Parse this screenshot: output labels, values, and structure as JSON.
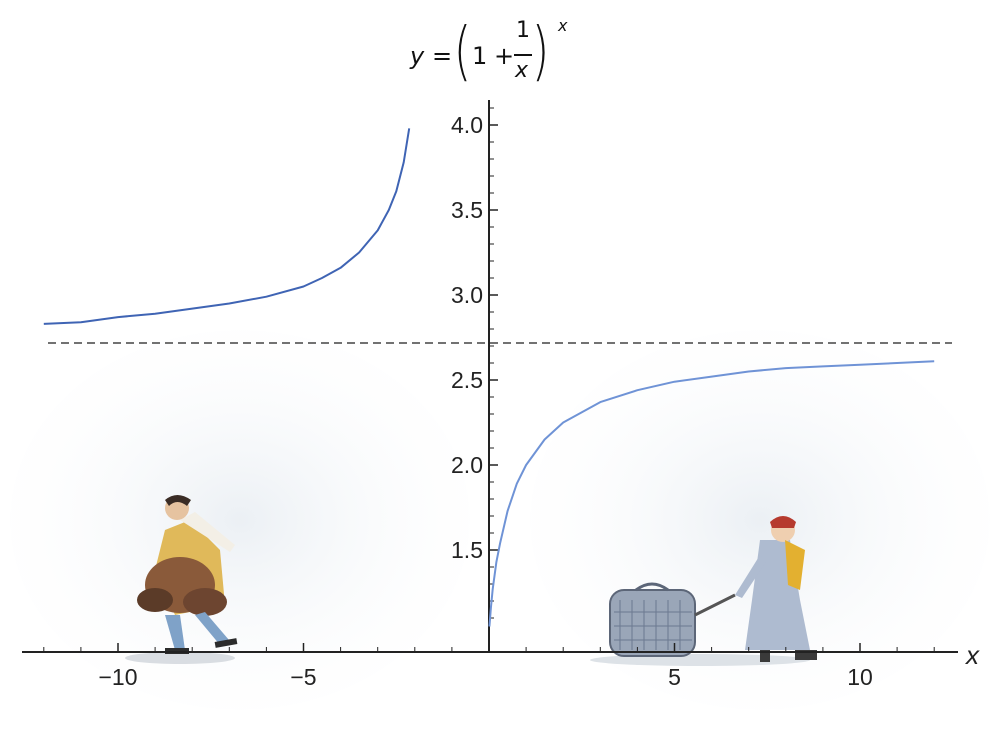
{
  "chart_data": {
    "type": "line",
    "title_parts": {
      "y": "y",
      "eq": "=",
      "lparen": "(",
      "one": "1",
      "plus": "+",
      "numerator": "1",
      "denominator": "x",
      "rparen": ")",
      "exponent": "x"
    },
    "xlabel": "x",
    "ylabel": "",
    "xlim": [
      -12.2,
      12.2
    ],
    "ylim": [
      1.0,
      4.1
    ],
    "x_ticks": [
      {
        "value": -10,
        "label": "−10"
      },
      {
        "value": -5,
        "label": "−5"
      },
      {
        "value": 5,
        "label": "5"
      },
      {
        "value": 10,
        "label": "10"
      }
    ],
    "y_ticks": [
      {
        "value": 1.5,
        "label": "1.5"
      },
      {
        "value": 2.0,
        "label": "2.0"
      },
      {
        "value": 2.5,
        "label": "2.5"
      },
      {
        "value": 3.0,
        "label": "3.0"
      },
      {
        "value": 3.5,
        "label": "3.5"
      },
      {
        "value": 4.0,
        "label": "4.0"
      }
    ],
    "series": [
      {
        "segment": "left",
        "color": "#3f64b4",
        "x": [
          -12,
          -11,
          -10,
          -9,
          -8,
          -7,
          -6,
          -5,
          -4.5,
          -4,
          -3.5,
          -3,
          -2.7,
          -2.5,
          -2.3,
          -2.15
        ],
        "y": [
          2.83,
          2.84,
          2.87,
          2.89,
          2.92,
          2.95,
          2.99,
          3.05,
          3.1,
          3.16,
          3.25,
          3.38,
          3.5,
          3.61,
          3.78,
          3.98
        ]
      },
      {
        "segment": "right",
        "color": "#6f93d6",
        "x": [
          0.01,
          0.05,
          0.1,
          0.2,
          0.3,
          0.5,
          0.75,
          1,
          1.5,
          2,
          3,
          4,
          5,
          6,
          7,
          8,
          9,
          10,
          11,
          12
        ],
        "y": [
          1.05,
          1.16,
          1.27,
          1.43,
          1.54,
          1.73,
          1.89,
          2.0,
          2.15,
          2.25,
          2.37,
          2.44,
          2.49,
          2.52,
          2.55,
          2.57,
          2.58,
          2.59,
          2.6,
          2.61
        ]
      }
    ],
    "asymptote": {
      "value": 2.718,
      "style": "dashed",
      "color": "#444444"
    },
    "grid": false,
    "legend": "none",
    "colors": {
      "left_curve": "#3f64b4",
      "right_curve": "#6f93d6",
      "axes": "#222222"
    },
    "illustrations": [
      "man-with-bags-walking-left",
      "woman-pulling-suitcase-walking-right"
    ]
  }
}
